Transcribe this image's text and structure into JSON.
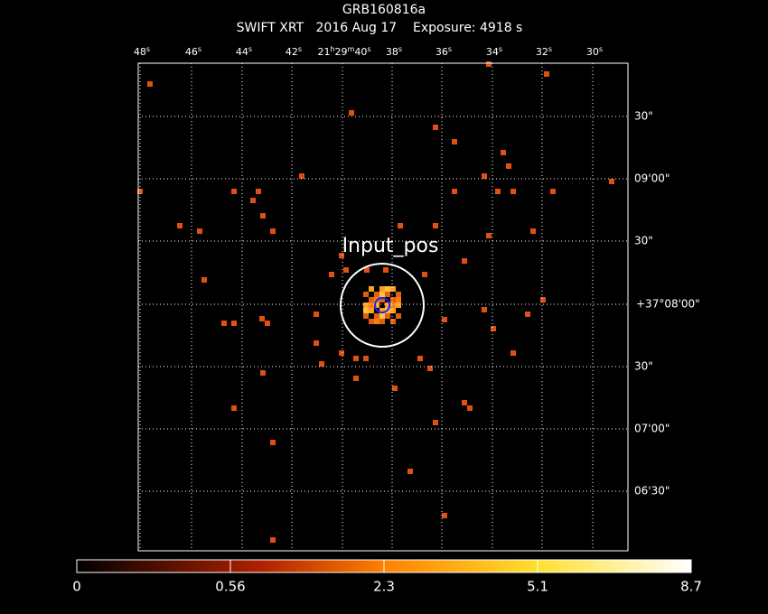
{
  "header": {
    "title": "GRB160816a",
    "subtitle": "SWIFT XRT   2016 Aug 17    Exposure: 4918 s"
  },
  "axes": {
    "ra_labels": [
      "48s",
      "46s",
      "44s",
      "42s",
      "21h29m40s",
      "38s",
      "36s",
      "34s",
      "32s",
      "30s"
    ],
    "dec_labels": [
      "30\"",
      "09'00\"",
      "30\"",
      "+37°08'00\"",
      "30\"",
      "07'00\"",
      "06'30\""
    ]
  },
  "annotation": "Input_pos",
  "colorbar": {
    "labels": [
      "0",
      "0.56",
      "2.3",
      "5.1",
      "8.7"
    ]
  }
}
